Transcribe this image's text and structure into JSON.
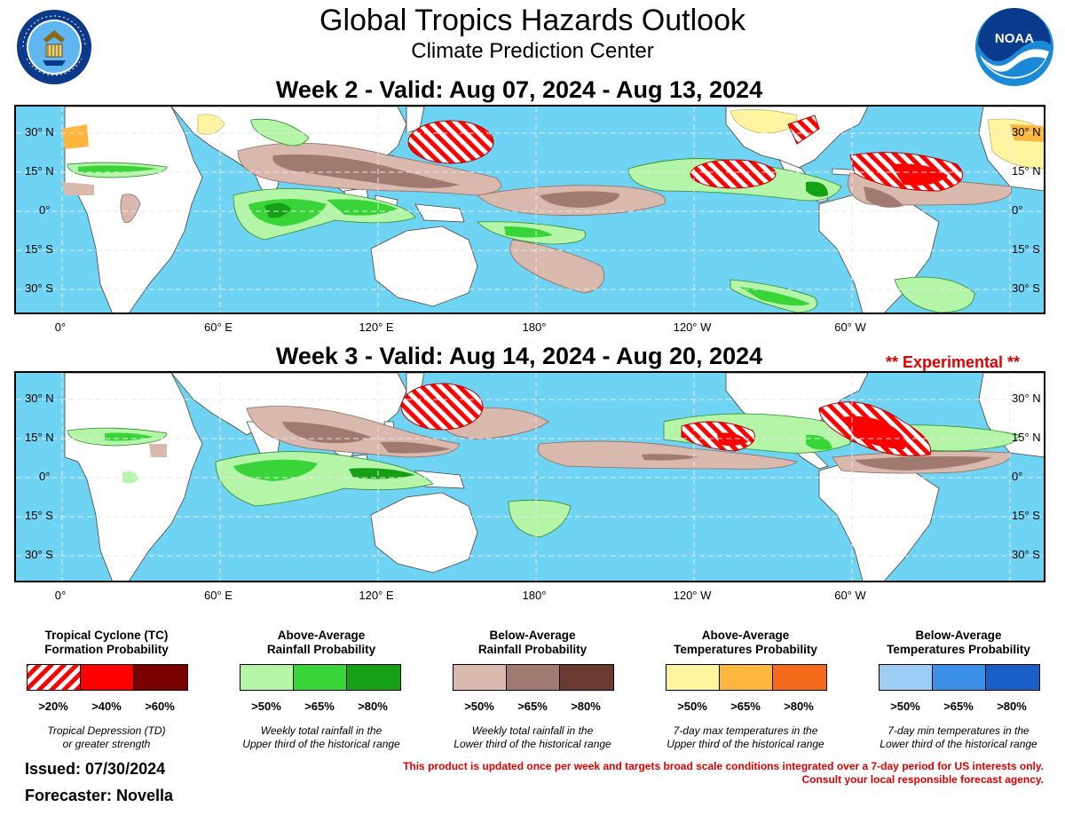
{
  "header": {
    "title": "Global Tropics Hazards Outlook",
    "subtitle": "Climate Prediction Center"
  },
  "logos": {
    "left": "department-of-commerce-seal",
    "right": "noaa-logo"
  },
  "maps": [
    {
      "title": "Week 2 - Valid: Aug 07, 2024 - Aug 13, 2024"
    },
    {
      "title": "Week 3 - Valid: Aug 14, 2024 - Aug 20, 2024",
      "badge": "** Experimental **"
    }
  ],
  "axes": {
    "lat_labels_left": [
      "30° N",
      "15° N",
      "0°",
      "15° S",
      "30° S"
    ],
    "lat_labels_right": [
      "30° N",
      "15° N",
      "0°",
      "15° S",
      "30° S"
    ],
    "lon_labels": [
      "0°",
      "60° E",
      "120° E",
      "180°",
      "120° W",
      "60° W"
    ]
  },
  "legend": [
    {
      "title_1": "Tropical Cyclone (TC)",
      "title_2": "Formation Probability",
      "levels": [
        ">20%",
        ">40%",
        ">60%"
      ],
      "colors": [
        "hatch-red",
        "#ff0000",
        "#7a0000"
      ],
      "note_1": "Tropical Depression (TD)",
      "note_2": "or greater strength"
    },
    {
      "title_1": "Above-Average",
      "title_2": "Rainfall Probability",
      "levels": [
        ">50%",
        ">65%",
        ">80%"
      ],
      "colors": [
        "#b4f5a8",
        "#38d438",
        "#16a016"
      ],
      "note_1": "Weekly total rainfall in the",
      "note_2": "Upper third of the historical range"
    },
    {
      "title_1": "Below-Average",
      "title_2": "Rainfall Probability",
      "levels": [
        ">50%",
        ">65%",
        ">80%"
      ],
      "colors": [
        "#d9b8ae",
        "#a07a70",
        "#6a3a30"
      ],
      "note_1": "Weekly total rainfall in the",
      "note_2": "Lower third of the historical range"
    },
    {
      "title_1": "Above-Average",
      "title_2": "Temperatures Probability",
      "levels": [
        ">50%",
        ">65%",
        ">80%"
      ],
      "colors": [
        "#fff5a0",
        "#fdb73e",
        "#f46a1a"
      ],
      "note_1": "7-day max temperatures in the",
      "note_2": "Upper third of the historical range"
    },
    {
      "title_1": "Below-Average",
      "title_2": "Temperatures Probability",
      "levels": [
        ">50%",
        ">65%",
        ">80%"
      ],
      "colors": [
        "#9ccdf5",
        "#3c90e8",
        "#1a5fc8"
      ],
      "note_1": "7-day min temperatures in the",
      "note_2": "Lower third of the historical range"
    }
  ],
  "footer": {
    "issued": "Issued: 07/30/2024",
    "forecaster": "Forecaster: Novella",
    "disclaimer_1": "This product is updated once per week and targets broad scale conditions integrated over a 7-day period for US interests only.",
    "disclaimer_2": "Consult your local responsible forecast agency."
  },
  "colors": {
    "ocean": "#6fd4f4",
    "land": "#ffffff",
    "tc_hatch": "#ff0000",
    "experimental": "#e00000"
  }
}
